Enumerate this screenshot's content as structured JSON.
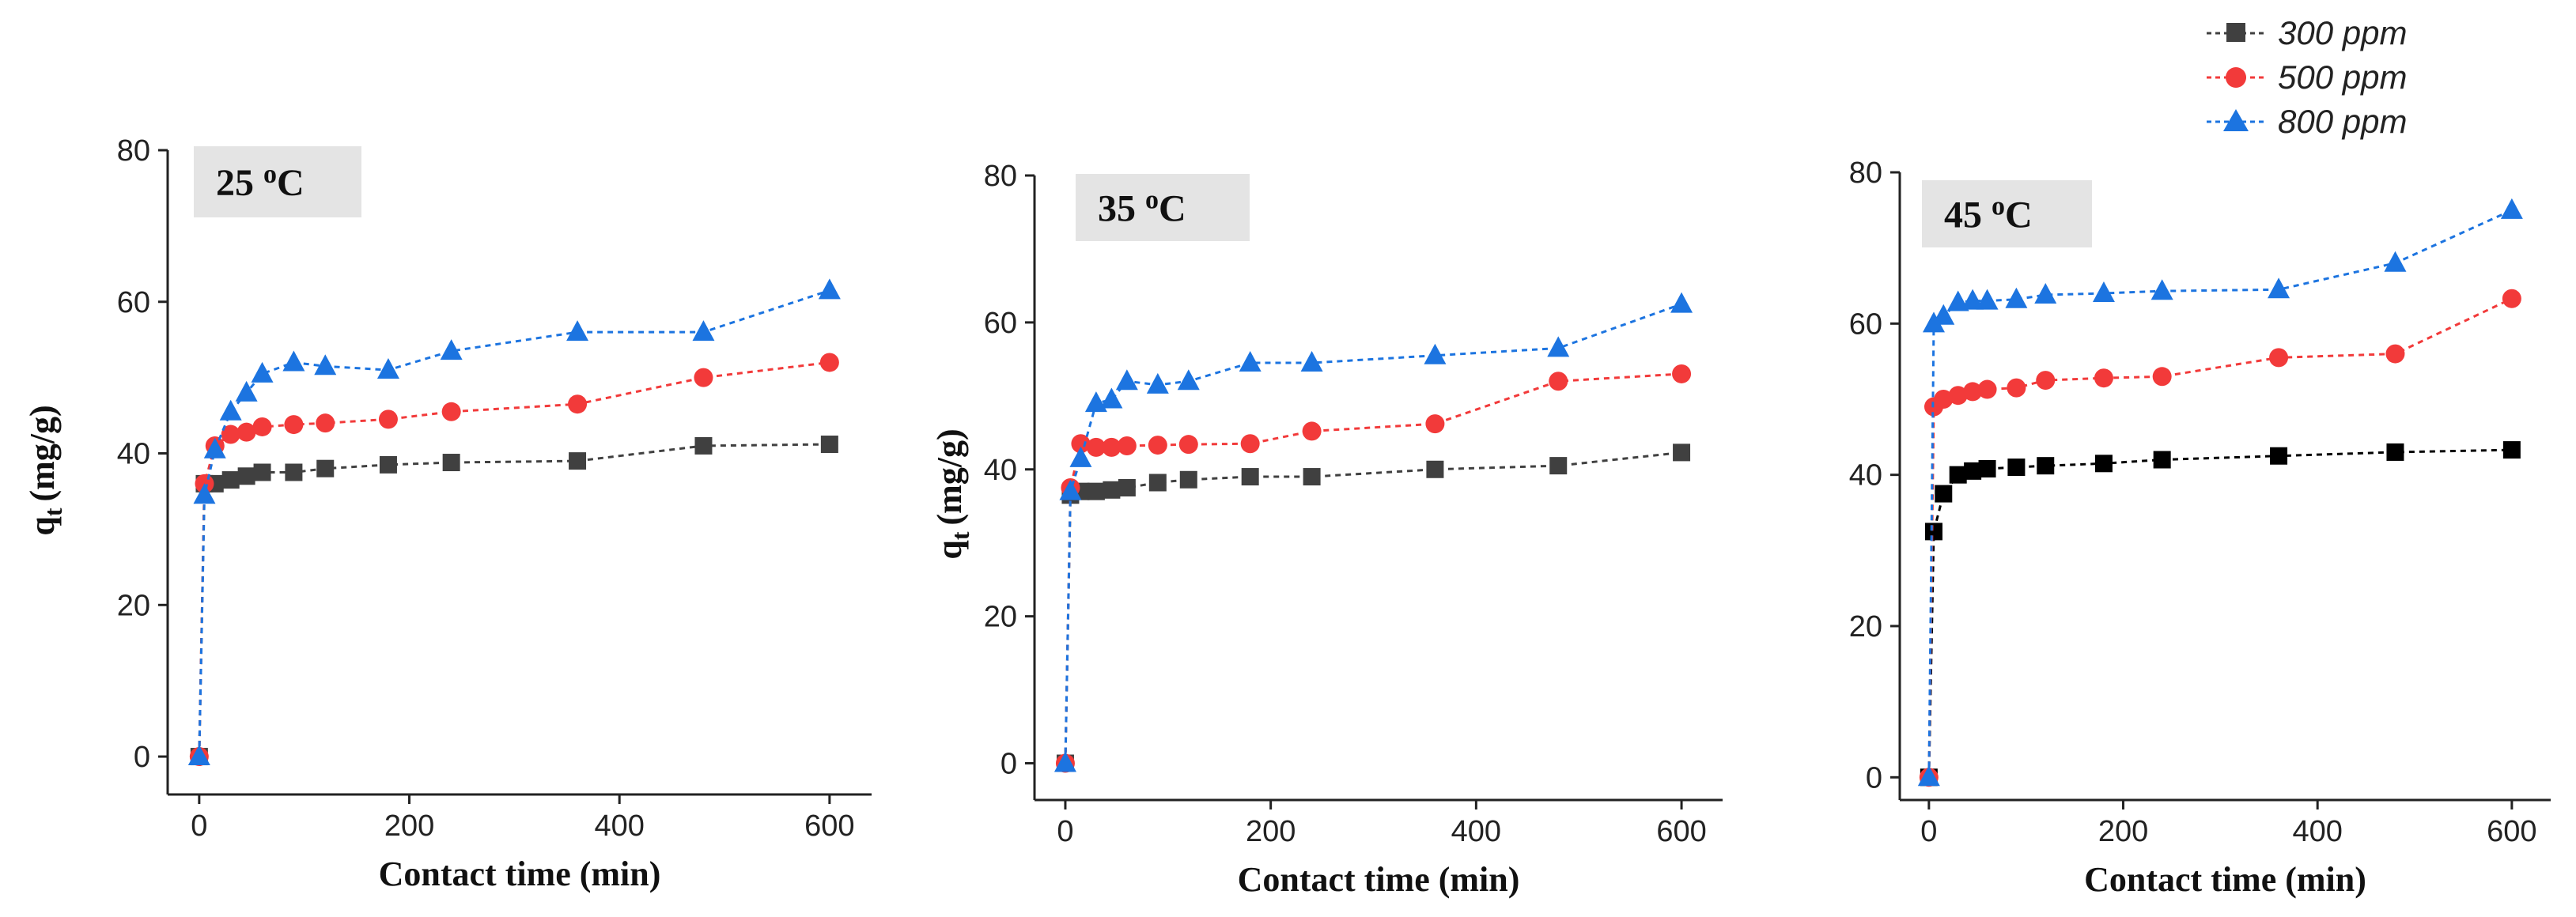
{
  "chart_data": [
    {
      "type": "scatter",
      "title": "25 oC",
      "temp_value": "25",
      "temp_unit": "oC",
      "xlabel": "Contact time (min)",
      "ylabel": "qt (mg/g)",
      "ylabel_main": "q",
      "ylabel_sub": "t",
      "ylabel_unit": "(mg/g)",
      "xlim": [
        -30,
        640
      ],
      "ylim": [
        -5,
        80
      ],
      "xticks": [
        0,
        200,
        400,
        600
      ],
      "yticks": [
        0,
        20,
        40,
        60,
        80
      ],
      "series": [
        {
          "name": "300 ppm",
          "x": [
            0,
            5,
            15,
            30,
            45,
            60,
            90,
            120,
            180,
            240,
            360,
            480,
            600
          ],
          "y": [
            0,
            36,
            36,
            36.5,
            37,
            37.5,
            37.5,
            38,
            38.5,
            38.8,
            39,
            41,
            41.2
          ]
        },
        {
          "name": "500 ppm",
          "x": [
            0,
            5,
            15,
            30,
            45,
            60,
            90,
            120,
            180,
            240,
            360,
            480,
            600
          ],
          "y": [
            0,
            36,
            41,
            42.5,
            42.8,
            43.5,
            43.8,
            44,
            44.5,
            45.5,
            46.5,
            50,
            52
          ]
        },
        {
          "name": "800 ppm",
          "x": [
            0,
            5,
            15,
            30,
            45,
            60,
            90,
            120,
            180,
            240,
            360,
            480,
            600
          ],
          "y": [
            0,
            34.5,
            40.5,
            45.5,
            48,
            50.5,
            52,
            51.5,
            51,
            53.5,
            56,
            56,
            61.5
          ]
        }
      ]
    },
    {
      "type": "scatter",
      "title": "35 oC",
      "temp_value": "35",
      "temp_unit": "oC",
      "xlabel": "Contact time (min)",
      "ylabel": "qt (mg/g)",
      "ylabel_main": "q",
      "ylabel_sub": "t",
      "ylabel_unit": "(mg/g)",
      "xlim": [
        -30,
        640
      ],
      "ylim": [
        -5,
        80
      ],
      "xticks": [
        0,
        200,
        400,
        600
      ],
      "yticks": [
        0,
        20,
        40,
        60,
        80
      ],
      "series": [
        {
          "name": "300 ppm",
          "x": [
            0,
            5,
            15,
            30,
            45,
            60,
            90,
            120,
            180,
            240,
            360,
            480,
            600
          ],
          "y": [
            0,
            36.5,
            37,
            37,
            37.2,
            37.5,
            38.2,
            38.6,
            39,
            39,
            40,
            40.5,
            42.3
          ]
        },
        {
          "name": "500 ppm",
          "x": [
            0,
            5,
            15,
            30,
            45,
            60,
            90,
            120,
            180,
            240,
            360,
            480,
            600
          ],
          "y": [
            0,
            37.5,
            43.5,
            43,
            43,
            43.2,
            43.3,
            43.4,
            43.5,
            45.2,
            46.2,
            52,
            53
          ]
        },
        {
          "name": "800 ppm",
          "x": [
            0,
            5,
            15,
            30,
            45,
            60,
            90,
            120,
            180,
            240,
            360,
            480,
            600
          ],
          "y": [
            0,
            37,
            41.5,
            49,
            49.5,
            52,
            51.5,
            52,
            54.5,
            54.5,
            55.5,
            56.5,
            62.5
          ]
        }
      ]
    },
    {
      "type": "scatter",
      "title": "45 oC",
      "temp_value": "45",
      "temp_unit": "oC",
      "xlabel": "Contact time (min)",
      "ylabel": "",
      "xlim": [
        -30,
        640
      ],
      "ylim": [
        -3,
        80
      ],
      "xticks": [
        0,
        200,
        400,
        600
      ],
      "yticks": [
        0,
        20,
        40,
        60,
        80
      ],
      "series": [
        {
          "name": "300 ppm",
          "x": [
            0,
            5,
            15,
            30,
            45,
            60,
            90,
            120,
            180,
            240,
            360,
            480,
            600
          ],
          "y": [
            0,
            32.5,
            37.5,
            40,
            40.5,
            40.8,
            41,
            41.2,
            41.5,
            42,
            42.5,
            43,
            43.3
          ]
        },
        {
          "name": "500 ppm",
          "x": [
            0,
            5,
            15,
            30,
            45,
            60,
            90,
            120,
            180,
            240,
            360,
            480,
            600
          ],
          "y": [
            0,
            49,
            50,
            50.5,
            51,
            51.3,
            51.5,
            52.5,
            52.8,
            53,
            55.5,
            56,
            63.3
          ]
        },
        {
          "name": "800 ppm",
          "x": [
            0,
            5,
            15,
            30,
            45,
            60,
            90,
            120,
            180,
            240,
            360,
            480,
            600
          ],
          "y": [
            0,
            60,
            61,
            62.8,
            63,
            63,
            63.2,
            63.8,
            64,
            64.3,
            64.5,
            68,
            75
          ]
        }
      ]
    }
  ],
  "legend": {
    "position": "top-right",
    "items": [
      {
        "label": "300 ppm",
        "color": "#404040",
        "marker": "square"
      },
      {
        "label": "500 ppm",
        "color": "#f23a3a",
        "marker": "circle"
      },
      {
        "label": "800 ppm",
        "color": "#1c74e0",
        "marker": "triangle"
      }
    ]
  },
  "colors": {
    "series_300": "#404040",
    "series_300_panel3": "#000000",
    "series_500": "#f23a3a",
    "series_800": "#1c74e0",
    "label_box": "#e4e4e4"
  }
}
